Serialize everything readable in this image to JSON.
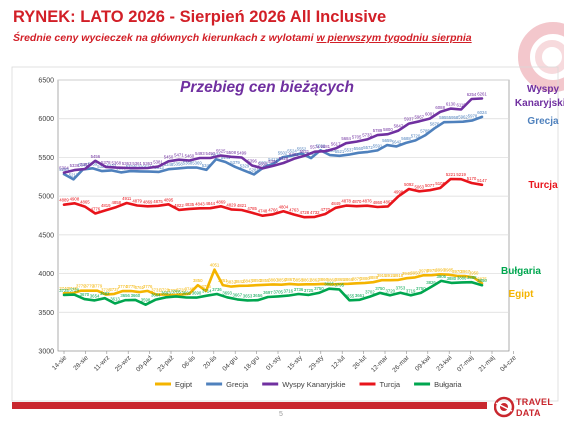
{
  "header": {
    "title": "RYNEK: LATO 2026 - Sierpień 2026 All Inclusive",
    "subtitle_prefix": "Średnie ceny wycieczek na głównych kierunkach  z wylotami ",
    "subtitle_emphasis": "w pierwszym tygodniu sierpnia"
  },
  "footer": {
    "page_number": "5",
    "logo_line1": "TRAVEL",
    "logo_line2": "DATA",
    "logo_icon": "travel-data-logo-icon"
  },
  "colors": {
    "title": "#d21f27",
    "grecja": "#4f81bd",
    "kanary": "#7030a0",
    "turcja": "#e8141b",
    "bulgaria": "#00a64f",
    "egipt": "#f4b400"
  },
  "chart_data": {
    "type": "line",
    "title": "Przebieg cen bieżących",
    "ylim": [
      3000,
      6500
    ],
    "yticks": [
      3000,
      3500,
      4000,
      4500,
      5000,
      5500,
      6000,
      6500
    ],
    "grid": true,
    "legend_position": "bottom",
    "xticks": [
      "14-sie",
      "28-sie",
      "11-wrz",
      "25-wrz",
      "09-paź",
      "23-paź",
      "06-lis",
      "20-lis",
      "04-gru",
      "18-gru",
      "01-sty",
      "15-sty",
      "29-sty",
      "12-lut",
      "26-lut",
      "12-mar",
      "26-mar",
      "09-kwi",
      "23-kwi",
      "07-maj",
      "21-maj",
      "04-cze"
    ],
    "series": [
      {
        "name": "Egipt",
        "side_label": "Egipt",
        "color": "#f4b400",
        "values": [
          3746,
          3746,
          3779,
          3779,
          3779,
          3728,
          3737,
          3774,
          3775,
          3761,
          3776,
          3731,
          3729,
          3722,
          3728,
          3740,
          3850,
          3776,
          4051,
          3851,
          3832,
          3842,
          3843,
          3850,
          3855,
          3860,
          3856,
          3867,
          3858,
          3861,
          3862,
          3866,
          3860,
          3865,
          3868,
          3875,
          3880,
          3889,
          3915,
          3915,
          3918,
          3940,
          3950,
          3978,
          3979,
          3990,
          3985,
          3970,
          3967,
          3950,
          3875
        ]
      },
      {
        "name": "Grecja",
        "side_label": "Grecja",
        "color": "#4f81bd",
        "values": [
          5285,
          5217,
          5345,
          5359,
          5324,
          5332,
          5306,
          5324,
          5320,
          5317,
          5313,
          5348,
          5358,
          5368,
          5369,
          5340,
          5476,
          5441,
          5379,
          5329,
          5281,
          5371,
          5417,
          5502,
          5524,
          5552,
          5491,
          5592,
          5530,
          5521,
          5537,
          5560,
          5572,
          5591,
          5659,
          5642,
          5688,
          5720,
          5785,
          5876,
          5955,
          5958,
          5962,
          5978,
          6024
        ]
      },
      {
        "name": "Wyspy Kanaryjskie",
        "side_label": "Wyspy Kanaryjskie",
        "color": "#7030a0",
        "values": [
          5304,
          5336,
          5351,
          5456,
          5378,
          5368,
          5363,
          5361,
          5363,
          5381,
          5450,
          5471,
          5460,
          5493,
          5493,
          5525,
          5508,
          5499,
          5396,
          5358,
          5391,
          5428,
          5482,
          5521,
          5574,
          5581,
          5617,
          5684,
          5705,
          5733,
          5789,
          5800,
          5847,
          5937,
          5967,
          6001,
          6088,
          6130,
          6119,
          6254,
          6261
        ]
      },
      {
        "name": "Turcja",
        "side_label": "Turcja",
        "color": "#e8141b",
        "values": [
          4889,
          4908,
          4865,
          4776,
          4819,
          4858,
          4911,
          4879,
          4869,
          4875,
          4895,
          4822,
          4835,
          4843,
          4844,
          4869,
          4829,
          4821,
          4785,
          4748,
          4766,
          4804,
          4763,
          4728,
          4732,
          4770,
          4849,
          4878,
          4870,
          4876,
          4860,
          4867,
          4998,
          5092,
          5063,
          5077,
          5105,
          5221,
          5219,
          5170,
          5147
        ]
      },
      {
        "name": "Bułgaria",
        "side_label": "Bułgaria",
        "color": "#00a64f",
        "values": [
          3725,
          3728,
          3670,
          3654,
          3682,
          3613,
          3656,
          3660,
          3598,
          3664,
          3693,
          3705,
          3691,
          3690,
          3714,
          3736,
          3693,
          3667,
          3653,
          3656,
          3697,
          3705,
          3716,
          3736,
          3725,
          3750,
          3805,
          3795,
          3655,
          3661,
          3702,
          3750,
          3720,
          3753,
          3719,
          3750,
          3826,
          3905,
          3880,
          3886,
          3888,
          3850
        ]
      }
    ]
  }
}
